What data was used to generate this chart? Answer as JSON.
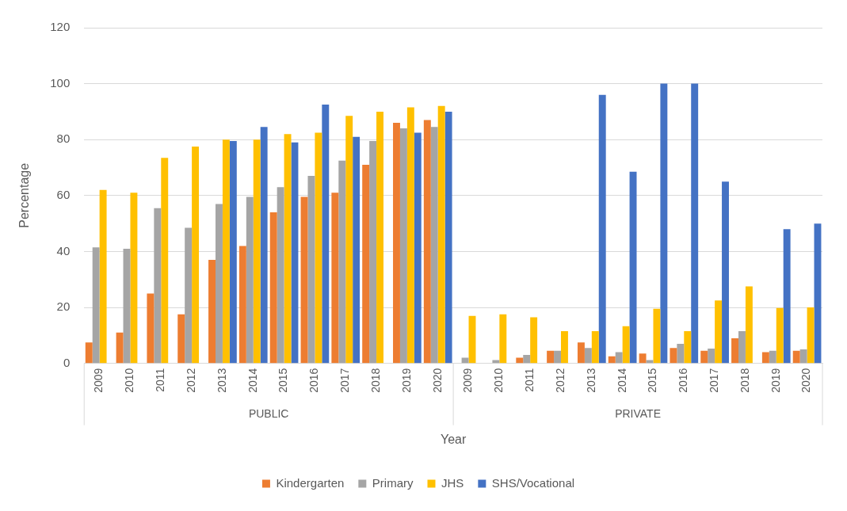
{
  "chart_data": {
    "type": "bar",
    "xlabel": "Year",
    "ylabel": "Percentage",
    "categories": [
      "2009",
      "2010",
      "2011",
      "2012",
      "2013",
      "2014",
      "2015",
      "2016",
      "2017",
      "2018",
      "2019",
      "2020",
      "2009",
      "2010",
      "2011",
      "2012",
      "2013",
      "2014",
      "2015",
      "2016",
      "2017",
      "2018",
      "2019",
      "2020"
    ],
    "series": [
      {
        "name": "Kindergarten",
        "color": "#ed7d31",
        "values": [
          7.5,
          11,
          25,
          17.5,
          37,
          42,
          54,
          59.5,
          61,
          71,
          86,
          87,
          null,
          null,
          2,
          4.5,
          7.5,
          2.5,
          3.5,
          5.5,
          4.5,
          9,
          4,
          4.5
        ]
      },
      {
        "name": "Primary",
        "color": "#a5a5a5",
        "values": [
          41.5,
          41,
          55.5,
          48.5,
          57,
          59.5,
          63,
          67,
          72.5,
          79.5,
          84,
          84.5,
          2,
          1.2,
          3,
          4.5,
          5.5,
          4,
          1.2,
          7,
          5.3,
          11.5,
          4.5,
          5
        ]
      },
      {
        "name": "JHS",
        "color": "#ffc000",
        "values": [
          62,
          61,
          73.5,
          77.5,
          80,
          80,
          82,
          82.5,
          88.5,
          90,
          91.5,
          92,
          17,
          17.5,
          16.5,
          11.5,
          11.5,
          13.3,
          19.5,
          11.5,
          22.5,
          27.5,
          19.8,
          20
        ]
      },
      {
        "name": "SHS/Vocational",
        "color": "#4472c4",
        "values": [
          null,
          null,
          null,
          null,
          79.5,
          84.5,
          79,
          92.5,
          81,
          null,
          82.5,
          90,
          null,
          null,
          null,
          null,
          96,
          68.5,
          100,
          100,
          65,
          null,
          48,
          50
        ]
      }
    ],
    "annotations": [
      "PUBLIC",
      "PRIVATE"
    ],
    "ylim": [
      0,
      120
    ],
    "yticks": [
      0,
      20,
      40,
      60,
      80,
      100,
      120
    ],
    "grid": "y",
    "legend": "bottom"
  }
}
